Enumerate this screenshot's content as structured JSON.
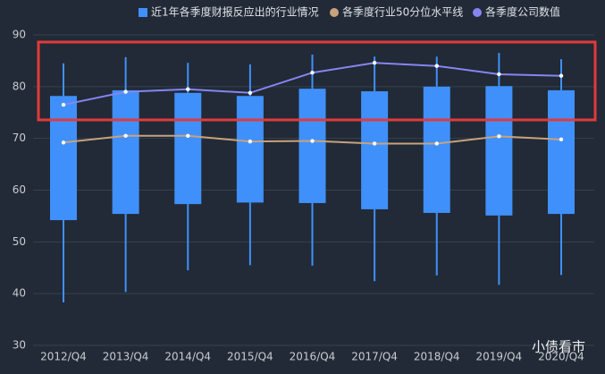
{
  "chart_data": {
    "type": "box",
    "categories": [
      "2012/Q4",
      "2013/Q4",
      "2014/Q4",
      "2015/Q4",
      "2016/Q4",
      "2017/Q4",
      "2018/Q4",
      "2019/Q4",
      "2020/Q4"
    ],
    "series": [
      {
        "name": "近1年各季度财报反应出的行业情况",
        "type": "box",
        "color": "#4090fb",
        "low": [
          38.3,
          40.3,
          44.5,
          45.5,
          45.4,
          42.4,
          43.5,
          41.7,
          43.6
        ],
        "q1": [
          54.2,
          55.4,
          57.3,
          57.6,
          57.5,
          56.3,
          55.6,
          55.1,
          55.4
        ],
        "q3": [
          78.2,
          79.3,
          78.8,
          78.2,
          79.6,
          79.1,
          80.0,
          80.1,
          79.3
        ],
        "high": [
          84.5,
          85.7,
          84.6,
          84.3,
          86.2,
          85.8,
          85.8,
          86.5,
          85.3
        ]
      },
      {
        "name": "各季度行业50分位水平线",
        "type": "line",
        "color": "#c8a27c",
        "values": [
          69.2,
          70.5,
          70.5,
          69.4,
          69.5,
          69.0,
          69.0,
          70.4,
          69.8
        ]
      },
      {
        "name": "各季度公司数值",
        "type": "line",
        "color": "#8585f2",
        "values": [
          76.5,
          79.0,
          79.5,
          78.8,
          82.7,
          84.6,
          84.0,
          82.4,
          82.1
        ]
      }
    ],
    "ylim": [
      30,
      90
    ],
    "yticks": [
      30,
      40,
      50,
      60,
      70,
      80,
      90
    ],
    "grid": true,
    "watermark": "小债看市"
  }
}
